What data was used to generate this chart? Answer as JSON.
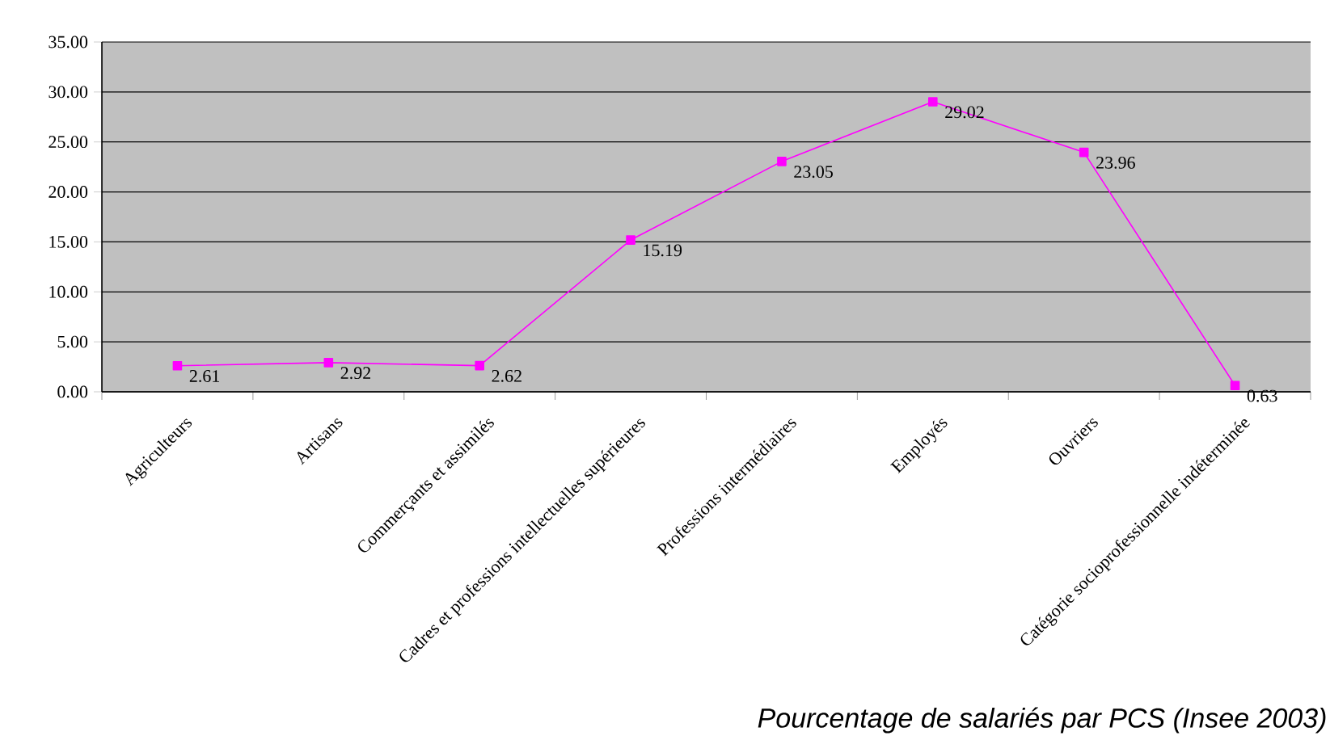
{
  "chart_data": {
    "type": "line",
    "categories": [
      "Agriculteurs",
      "Artisans",
      "Commerçants et assimilés",
      "Cadres et  professions intellectuelles supérieures",
      "Professions intermédiaires",
      "Employés",
      "Ouvriers",
      "Catégorie socioprofessionnelle indéterminée"
    ],
    "values": [
      2.61,
      2.92,
      2.62,
      15.19,
      23.05,
      29.02,
      23.96,
      0.63
    ],
    "color": "#ff00ff",
    "ylim": [
      0,
      35
    ],
    "yticks": [
      {
        "value": 0,
        "label": "0.00"
      },
      {
        "value": 5,
        "label": "5.00"
      },
      {
        "value": 10,
        "label": "10.00"
      },
      {
        "value": 15,
        "label": "15.00"
      },
      {
        "value": 20,
        "label": "20.00"
      },
      {
        "value": 25,
        "label": "25.00"
      },
      {
        "value": 30,
        "label": "30.00"
      },
      {
        "value": 35,
        "label": "35.00"
      }
    ],
    "grid": "y",
    "marker": "square",
    "line_style": "solid",
    "data_labels": true,
    "annotations": [
      "Pourcentage de salariés par PCS (Insee 2003)"
    ]
  }
}
